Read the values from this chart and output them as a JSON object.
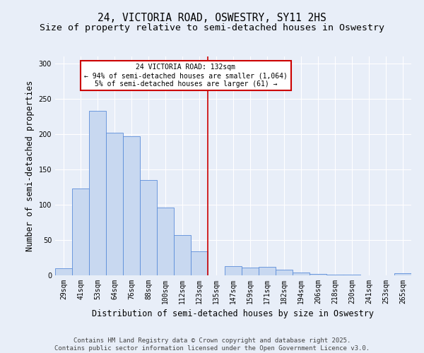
{
  "title_line1": "24, VICTORIA ROAD, OSWESTRY, SY11 2HS",
  "title_line2": "Size of property relative to semi-detached houses in Oswestry",
  "xlabel": "Distribution of semi-detached houses by size in Oswestry",
  "ylabel": "Number of semi-detached properties",
  "categories": [
    "29sqm",
    "41sqm",
    "53sqm",
    "64sqm",
    "76sqm",
    "88sqm",
    "100sqm",
    "112sqm",
    "123sqm",
    "135sqm",
    "147sqm",
    "159sqm",
    "171sqm",
    "182sqm",
    "194sqm",
    "206sqm",
    "218sqm",
    "230sqm",
    "241sqm",
    "253sqm",
    "265sqm"
  ],
  "values": [
    10,
    123,
    233,
    202,
    197,
    135,
    96,
    57,
    34,
    0,
    13,
    11,
    12,
    8,
    4,
    2,
    1,
    1,
    0,
    0,
    3
  ],
  "bar_color": "#c8d8f0",
  "bar_edge_color": "#5b8dd9",
  "property_line_x": 8.5,
  "annotation_title": "24 VICTORIA ROAD: 132sqm",
  "annotation_line2": "← 94% of semi-detached houses are smaller (1,064)",
  "annotation_line3": "5% of semi-detached houses are larger (61) →",
  "annotation_box_color": "#ffffff",
  "annotation_box_edge_color": "#cc0000",
  "red_line_color": "#cc0000",
  "footer_line1": "Contains HM Land Registry data © Crown copyright and database right 2025.",
  "footer_line2": "Contains public sector information licensed under the Open Government Licence v3.0.",
  "ylim": [
    0,
    310
  ],
  "background_color": "#e8eef8",
  "plot_bg_color": "#e8eef8",
  "grid_color": "#ffffff",
  "title_fontsize": 10.5,
  "subtitle_fontsize": 9.5,
  "axis_label_fontsize": 8.5,
  "tick_fontsize": 7,
  "footer_fontsize": 6.5,
  "ann_fontsize": 7
}
